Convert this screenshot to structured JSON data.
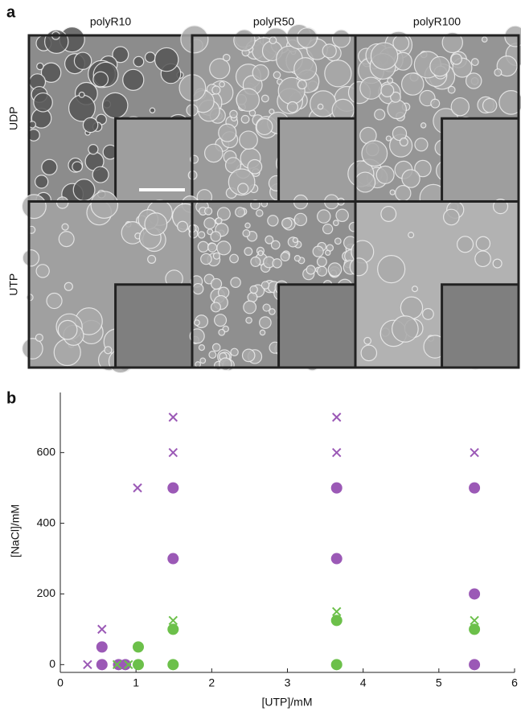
{
  "panel_a": {
    "label": "a",
    "columns": [
      "polyR10",
      "polyR50",
      "polyR100"
    ],
    "rows": [
      "UDP",
      "UTP"
    ]
  },
  "chart_data": {
    "type": "scatter",
    "panel_label": "b",
    "x_label": "[UTP]/mM",
    "y_label": "[NaCl]/mM",
    "xlim": [
      0,
      6
    ],
    "xticks": [
      0,
      1,
      2,
      3,
      4,
      5,
      6
    ],
    "ylim": [
      -22,
      770
    ],
    "yticks": [
      0,
      200,
      400,
      600
    ],
    "series": [
      {
        "color": "#9b59b6",
        "marker": "x",
        "x": [
          0.36,
          0.55,
          1.02,
          1.49,
          1.49,
          3.65,
          3.65,
          5.47
        ],
        "values": [
          0,
          100,
          500,
          700,
          600,
          700,
          600,
          600
        ]
      },
      {
        "color": "#9b59b6",
        "marker": "circle",
        "x": [
          0.55,
          0.55,
          0.77,
          0.86,
          1.49,
          1.49,
          3.65,
          3.65,
          5.47,
          5.47,
          5.47
        ],
        "values": [
          0,
          50,
          0,
          0,
          500,
          300,
          500,
          300,
          500,
          200,
          0
        ]
      },
      {
        "color": "#6cc04a",
        "marker": "circle",
        "x": [
          1.03,
          1.03,
          1.49,
          1.49,
          3.65,
          3.65,
          5.47
        ],
        "values": [
          50,
          0,
          100,
          0,
          125,
          0,
          100
        ]
      },
      {
        "color": "#6cc04a",
        "marker": "x",
        "x": [
          0.75,
          0.9,
          1.49,
          3.65,
          5.47
        ],
        "values": [
          0,
          0,
          125,
          150,
          125
        ]
      }
    ]
  }
}
